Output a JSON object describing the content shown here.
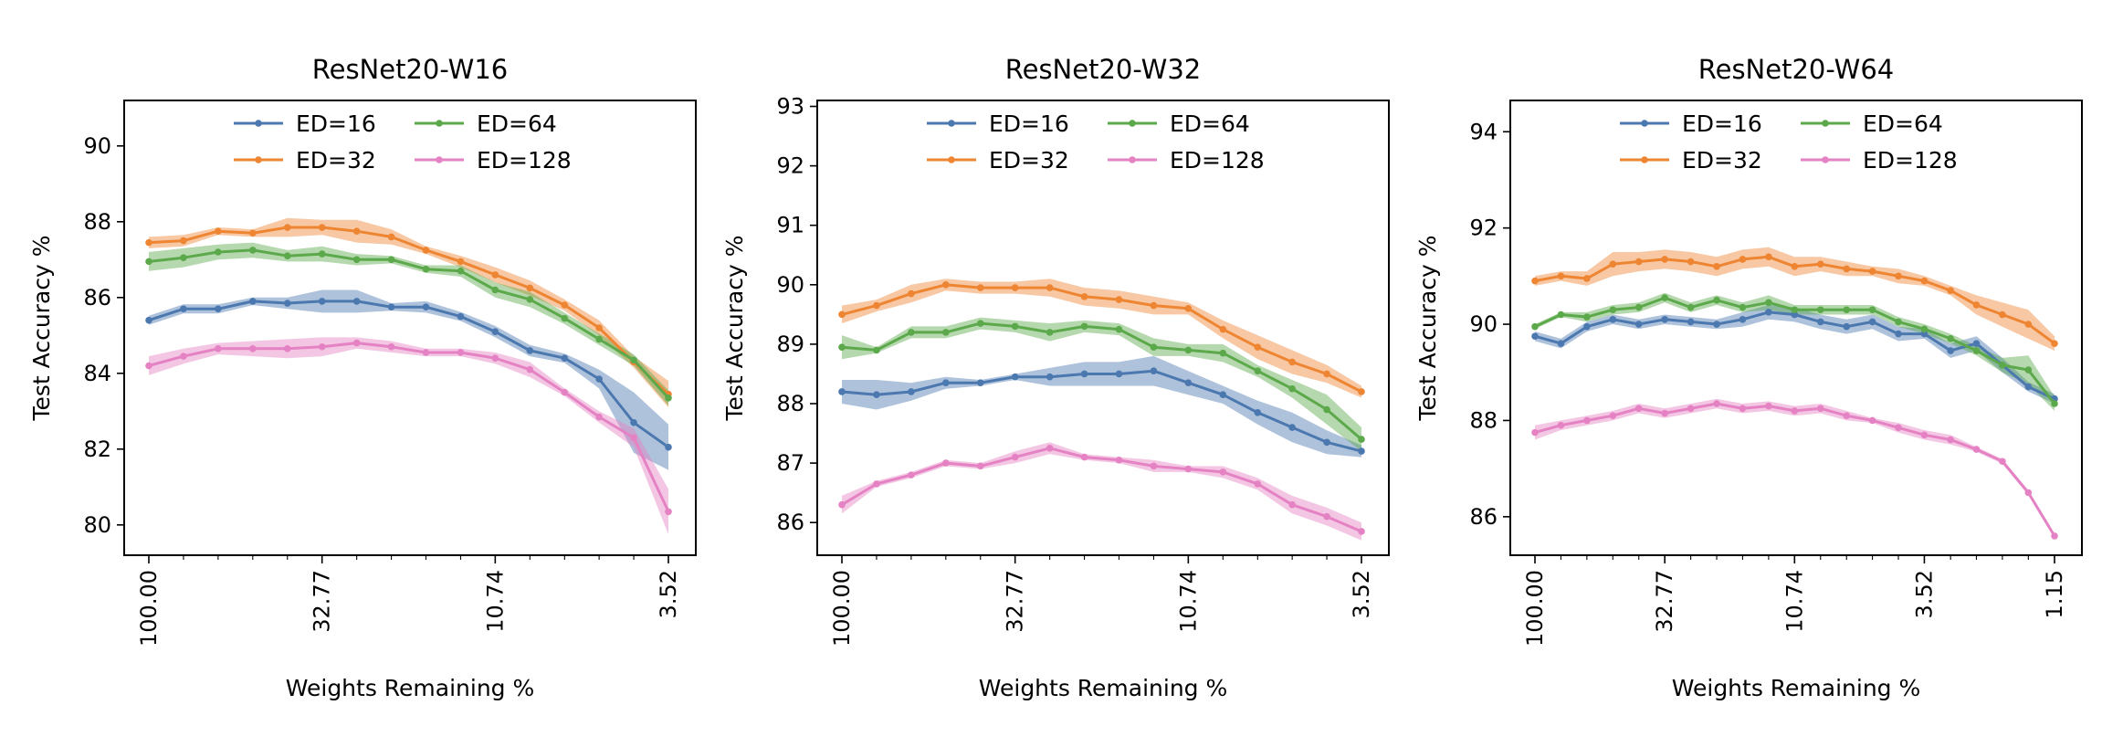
{
  "chart_data": [
    {
      "type": "line",
      "title": "ResNet20-W16",
      "xlabel": "Weights Remaining %",
      "ylabel": "Test Accuracy %",
      "x_scale": "log",
      "x_reversed": true,
      "x_tick_labels": [
        "100.00",
        "32.77",
        "10.74",
        "3.52"
      ],
      "y_ticks": [
        80,
        82,
        84,
        86,
        88,
        90
      ],
      "ylim": [
        79.2,
        91.2
      ],
      "x": [
        100.0,
        80.0,
        64.0,
        51.2,
        40.96,
        32.77,
        26.21,
        20.97,
        16.78,
        13.42,
        10.74,
        8.59,
        6.87,
        5.5,
        4.4,
        3.52
      ],
      "legend_position": "top-center",
      "series": [
        {
          "name": "ED=16",
          "color": "#4c78b0",
          "values": [
            85.4,
            85.7,
            85.7,
            85.9,
            85.85,
            85.9,
            85.9,
            85.75,
            85.75,
            85.5,
            85.1,
            84.6,
            84.4,
            83.85,
            82.7,
            82.05
          ],
          "band": [
            0.12,
            0.12,
            0.12,
            0.1,
            0.15,
            0.3,
            0.3,
            0.1,
            0.15,
            0.12,
            0.15,
            0.15,
            0.12,
            0.25,
            0.8,
            0.6
          ]
        },
        {
          "name": "ED=32",
          "color": "#ee8532",
          "values": [
            87.45,
            87.5,
            87.75,
            87.7,
            87.85,
            87.85,
            87.75,
            87.6,
            87.25,
            86.95,
            86.6,
            86.25,
            85.8,
            85.2,
            84.3,
            83.45
          ],
          "band": [
            0.15,
            0.15,
            0.1,
            0.1,
            0.25,
            0.2,
            0.3,
            0.2,
            0.1,
            0.15,
            0.2,
            0.2,
            0.15,
            0.2,
            0.15,
            0.35
          ]
        },
        {
          "name": "ED=64",
          "color": "#5ca94b",
          "values": [
            86.95,
            87.05,
            87.2,
            87.25,
            87.1,
            87.15,
            87.0,
            87.0,
            86.75,
            86.7,
            86.2,
            85.95,
            85.45,
            84.9,
            84.35,
            83.35
          ],
          "band": [
            0.25,
            0.25,
            0.2,
            0.2,
            0.15,
            0.2,
            0.15,
            0.1,
            0.1,
            0.15,
            0.2,
            0.2,
            0.15,
            0.15,
            0.15,
            0.2
          ]
        },
        {
          "name": "ED=128",
          "color": "#e582c4",
          "values": [
            84.2,
            84.45,
            84.65,
            84.65,
            84.65,
            84.7,
            84.8,
            84.7,
            84.55,
            84.55,
            84.4,
            84.1,
            83.5,
            82.85,
            82.3,
            80.35
          ],
          "band": [
            0.25,
            0.2,
            0.15,
            0.2,
            0.25,
            0.25,
            0.15,
            0.15,
            0.1,
            0.1,
            0.15,
            0.2,
            0.1,
            0.15,
            0.25,
            0.6
          ]
        }
      ]
    },
    {
      "type": "line",
      "title": "ResNet20-W32",
      "xlabel": "Weights Remaining %",
      "ylabel": "Test Accuracy %",
      "x_scale": "log",
      "x_reversed": true,
      "x_tick_labels": [
        "100.00",
        "32.77",
        "10.74",
        "3.52"
      ],
      "y_ticks": [
        86,
        87,
        88,
        89,
        90,
        91,
        92,
        93
      ],
      "ylim": [
        85.45,
        93.1
      ],
      "x": [
        100.0,
        80.0,
        64.0,
        51.2,
        40.96,
        32.77,
        26.21,
        20.97,
        16.78,
        13.42,
        10.74,
        8.59,
        6.87,
        5.5,
        4.4,
        3.52
      ],
      "legend_position": "top-center",
      "series": [
        {
          "name": "ED=16",
          "color": "#4c78b0",
          "values": [
            88.2,
            88.15,
            88.2,
            88.35,
            88.35,
            88.45,
            88.45,
            88.5,
            88.5,
            88.55,
            88.35,
            88.15,
            87.85,
            87.6,
            87.35,
            87.2
          ],
          "band": [
            0.2,
            0.25,
            0.15,
            0.1,
            0.05,
            0.05,
            0.15,
            0.2,
            0.2,
            0.25,
            0.2,
            0.15,
            0.2,
            0.25,
            0.2,
            0.1
          ]
        },
        {
          "name": "ED=32",
          "color": "#ee8532",
          "values": [
            89.5,
            89.65,
            89.85,
            90.0,
            89.95,
            89.95,
            89.95,
            89.8,
            89.75,
            89.65,
            89.6,
            89.25,
            88.95,
            88.7,
            88.5,
            88.2
          ],
          "band": [
            0.15,
            0.1,
            0.15,
            0.1,
            0.1,
            0.1,
            0.15,
            0.15,
            0.15,
            0.15,
            0.1,
            0.15,
            0.2,
            0.2,
            0.15,
            0.1
          ]
        },
        {
          "name": "ED=64",
          "color": "#5ca94b",
          "values": [
            88.95,
            88.9,
            89.2,
            89.2,
            89.35,
            89.3,
            89.2,
            89.3,
            89.25,
            88.95,
            88.9,
            88.85,
            88.55,
            88.25,
            87.9,
            87.4
          ],
          "band": [
            0.2,
            0.05,
            0.1,
            0.1,
            0.1,
            0.1,
            0.15,
            0.1,
            0.1,
            0.15,
            0.1,
            0.15,
            0.1,
            0.15,
            0.25,
            0.2
          ]
        },
        {
          "name": "ED=128",
          "color": "#e582c4",
          "values": [
            86.3,
            86.65,
            86.8,
            87.0,
            86.95,
            87.1,
            87.25,
            87.1,
            87.05,
            86.95,
            86.9,
            86.85,
            86.65,
            86.3,
            86.1,
            85.85
          ],
          "band": [
            0.15,
            0.05,
            0.05,
            0.05,
            0.05,
            0.1,
            0.1,
            0.05,
            0.05,
            0.1,
            0.05,
            0.1,
            0.1,
            0.15,
            0.15,
            0.15
          ]
        }
      ]
    },
    {
      "type": "line",
      "title": "ResNet20-W64",
      "xlabel": "Weights Remaining %",
      "ylabel": "Test Accuracy %",
      "x_scale": "log",
      "x_reversed": true,
      "x_tick_labels": [
        "100.00",
        "32.77",
        "10.74",
        "3.52",
        "1.15"
      ],
      "y_ticks": [
        86,
        88,
        90,
        92,
        94
      ],
      "ylim": [
        85.2,
        94.65
      ],
      "x": [
        100.0,
        80.0,
        64.0,
        51.2,
        40.96,
        32.77,
        26.21,
        20.97,
        16.78,
        13.42,
        10.74,
        8.59,
        6.87,
        5.5,
        4.4,
        3.52,
        2.81,
        2.25,
        1.8,
        1.44,
        1.15
      ],
      "legend_position": "top-center",
      "series": [
        {
          "name": "ED=16",
          "color": "#4c78b0",
          "values": [
            89.75,
            89.6,
            89.95,
            90.1,
            90.0,
            90.1,
            90.05,
            90.0,
            90.1,
            90.25,
            90.2,
            90.05,
            89.95,
            90.05,
            89.8,
            89.8,
            89.45,
            89.6,
            89.15,
            88.7,
            88.45
          ],
          "band": [
            0.1,
            0.1,
            0.1,
            0.1,
            0.1,
            0.1,
            0.1,
            0.1,
            0.15,
            0.15,
            0.15,
            0.15,
            0.15,
            0.15,
            0.15,
            0.1,
            0.15,
            0.15,
            0.15,
            0.1,
            0.1
          ]
        },
        {
          "name": "ED=32",
          "color": "#ee8532",
          "values": [
            90.9,
            91.0,
            90.95,
            91.25,
            91.3,
            91.35,
            91.3,
            91.2,
            91.35,
            91.4,
            91.2,
            91.25,
            91.15,
            91.1,
            91.0,
            90.9,
            90.7,
            90.4,
            90.2,
            90.0,
            89.6
          ],
          "band": [
            0.1,
            0.1,
            0.15,
            0.25,
            0.2,
            0.2,
            0.2,
            0.2,
            0.2,
            0.2,
            0.2,
            0.15,
            0.15,
            0.1,
            0.15,
            0.1,
            0.1,
            0.2,
            0.25,
            0.3,
            0.15
          ]
        },
        {
          "name": "ED=64",
          "color": "#5ca94b",
          "values": [
            89.95,
            90.2,
            90.15,
            90.3,
            90.35,
            90.55,
            90.35,
            90.5,
            90.35,
            90.45,
            90.3,
            90.3,
            90.3,
            90.3,
            90.05,
            89.9,
            89.7,
            89.45,
            89.15,
            89.05,
            88.35
          ],
          "band": [
            0.05,
            0.05,
            0.1,
            0.1,
            0.1,
            0.1,
            0.1,
            0.1,
            0.1,
            0.15,
            0.1,
            0.1,
            0.1,
            0.1,
            0.1,
            0.1,
            0.1,
            0.1,
            0.15,
            0.3,
            0.15
          ]
        },
        {
          "name": "ED=128",
          "color": "#e582c4",
          "values": [
            87.75,
            87.9,
            88.0,
            88.1,
            88.25,
            88.15,
            88.25,
            88.35,
            88.25,
            88.3,
            88.2,
            88.25,
            88.1,
            88.0,
            87.85,
            87.7,
            87.6,
            87.4,
            87.15,
            86.5,
            85.6
          ],
          "band": [
            0.15,
            0.1,
            0.1,
            0.1,
            0.1,
            0.1,
            0.1,
            0.1,
            0.1,
            0.1,
            0.1,
            0.1,
            0.1,
            0.05,
            0.1,
            0.1,
            0.1,
            0.05,
            0.05,
            0.05,
            0.05
          ]
        }
      ]
    }
  ]
}
